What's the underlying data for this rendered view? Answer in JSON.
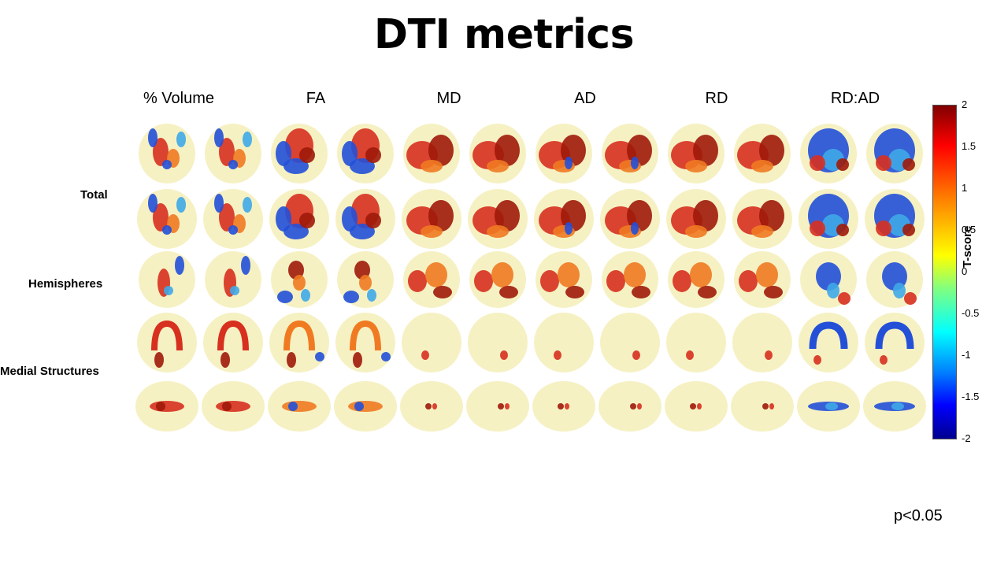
{
  "title": "DTI metrics",
  "columns": [
    "% Volume",
    "FA",
    "MD",
    "AD",
    "RD",
    "RD:AD"
  ],
  "rows": [
    {
      "label": "Total"
    },
    {
      "label": "Hemispheres"
    },
    {
      "label": "Medial Structures"
    }
  ],
  "colorbar": {
    "label": "T-score",
    "ticks": [
      "2",
      "1.5",
      "1",
      "0.5",
      "0",
      "-0.5",
      "-1",
      "-1.5",
      "-2"
    ],
    "range": [
      -2,
      2
    ]
  },
  "pvalue": "p<0.05",
  "colors": {
    "brain_shell": "#f5efb8",
    "positive": "#d7301f",
    "positive_dark": "#9e1a0a",
    "positive_light": "#f07a22",
    "negative": "#2450d8",
    "negative_light": "#3fa9e8"
  }
}
